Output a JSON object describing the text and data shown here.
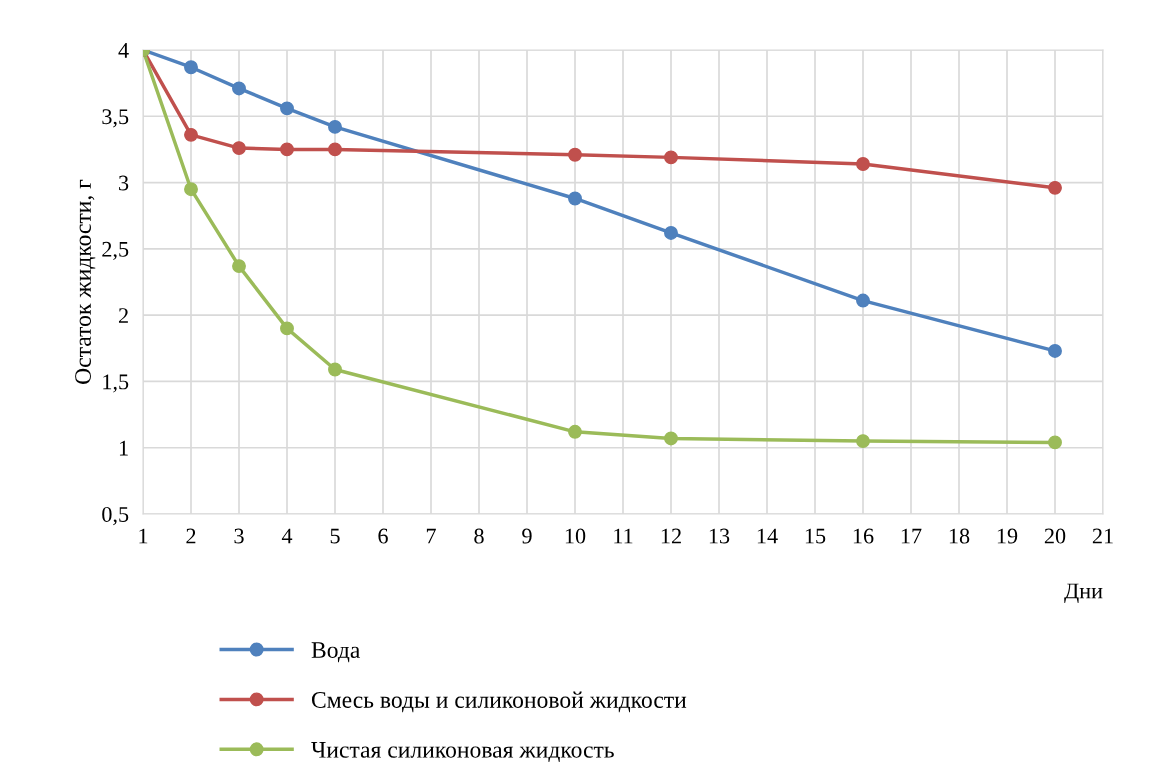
{
  "chart_data": {
    "type": "line",
    "xlabel": "Дни",
    "ylabel": "Остаток жидкости, г",
    "x": [
      1,
      2,
      3,
      4,
      5,
      10,
      12,
      16,
      20
    ],
    "series": [
      {
        "name": "Вода",
        "color": "#4f81bd",
        "values": [
          4.0,
          3.87,
          3.71,
          3.56,
          3.42,
          2.88,
          2.62,
          2.11,
          1.73
        ]
      },
      {
        "name": "Смесь воды и силиконовой жидкости",
        "color": "#c0504d",
        "values": [
          4.0,
          3.36,
          3.26,
          3.25,
          3.25,
          3.21,
          3.19,
          3.14,
          2.96
        ]
      },
      {
        "name": "Чистая силиконовая жидкость",
        "color": "#9bbb59",
        "values": [
          4.0,
          2.95,
          2.37,
          1.9,
          1.59,
          1.12,
          1.07,
          1.05,
          1.04
        ]
      }
    ],
    "xlim": [
      1,
      21
    ],
    "xticks": [
      1,
      2,
      3,
      4,
      5,
      6,
      7,
      8,
      9,
      10,
      11,
      12,
      13,
      14,
      15,
      16,
      17,
      18,
      19,
      20,
      21
    ],
    "ylim": [
      0.5,
      4
    ],
    "yticks": [
      {
        "value": 0.5,
        "label": "0,5"
      },
      1,
      {
        "value": 1.5,
        "label": "1,5"
      },
      2,
      {
        "value": 2.5,
        "label": "2,5"
      },
      3,
      {
        "value": 3.5,
        "label": "3,5"
      },
      4
    ],
    "grid": true,
    "legend": "bottom",
    "marker": "circle",
    "line_style": "solid"
  }
}
